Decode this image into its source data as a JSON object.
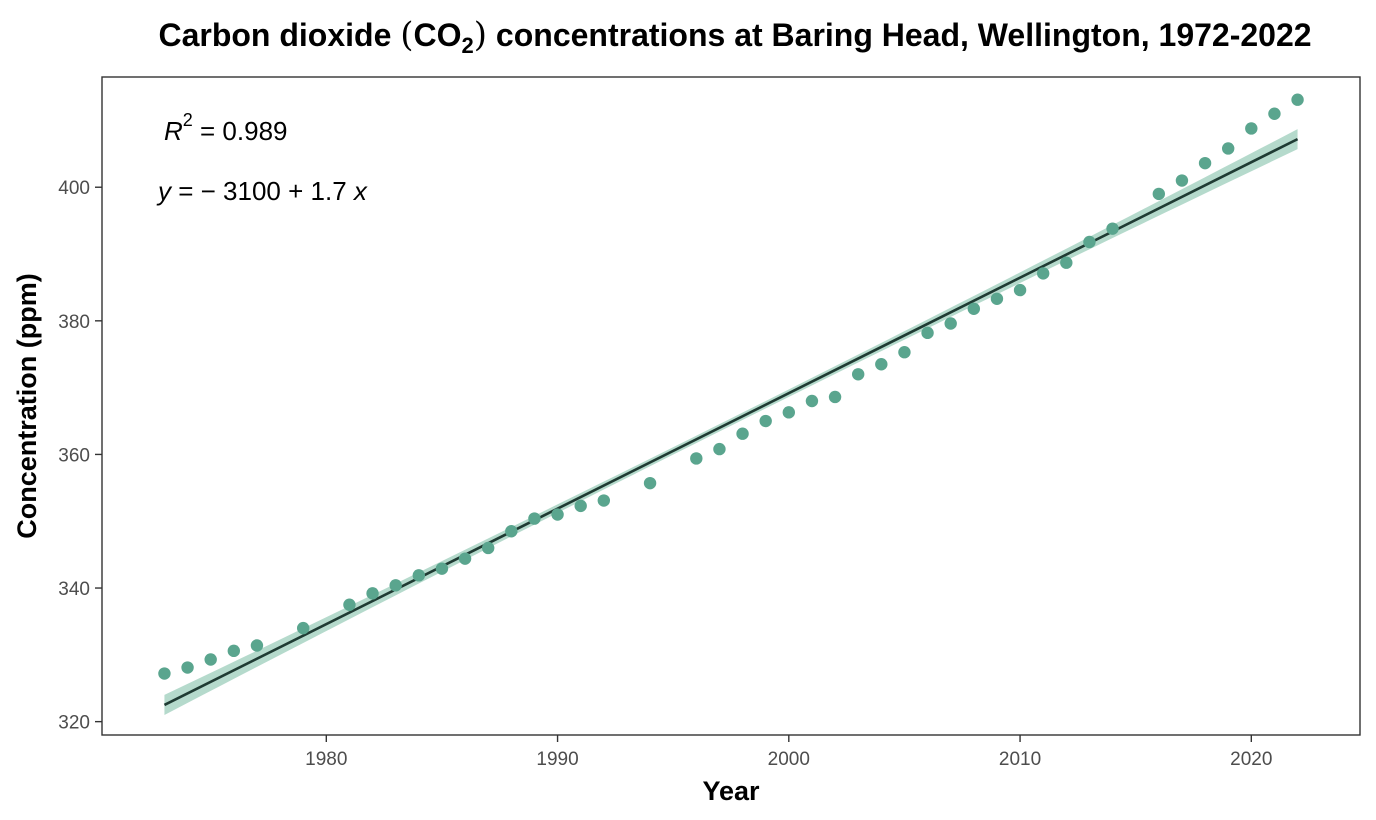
{
  "chart_data": {
    "type": "scatter",
    "title_parts": {
      "before": "Carbon dioxide ",
      "open_paren": "(",
      "chem_main": "CO",
      "chem_sub": "2",
      "close_paren": ")",
      "after": " concentrations at Baring Head, Wellington, 1972-2022"
    },
    "xlabel": "Year",
    "ylabel": "Concentration (ppm)",
    "xlim": [
      1970.3,
      2024.7
    ],
    "ylim": [
      318.0,
      416.5
    ],
    "x_ticks": [
      1980,
      1990,
      2000,
      2010,
      2020
    ],
    "y_ticks": [
      320,
      340,
      360,
      380,
      400
    ],
    "grid": false,
    "legend": "none",
    "colors": {
      "points": "#5aa58e",
      "line": "#1f3b33",
      "band": "#a8d3c3"
    },
    "points": [
      [
        1973,
        327.2
      ],
      [
        1974,
        328.1
      ],
      [
        1975,
        329.3
      ],
      [
        1976,
        330.6
      ],
      [
        1977,
        331.4
      ],
      [
        1979,
        334.0
      ],
      [
        1981,
        337.5
      ],
      [
        1982,
        339.2
      ],
      [
        1983,
        340.4
      ],
      [
        1984,
        341.9
      ],
      [
        1985,
        342.9
      ],
      [
        1986,
        344.4
      ],
      [
        1987,
        346.0
      ],
      [
        1988,
        348.5
      ],
      [
        1989,
        350.4
      ],
      [
        1990,
        351.0
      ],
      [
        1991,
        352.3
      ],
      [
        1992,
        353.1
      ],
      [
        1994,
        355.7
      ],
      [
        1996,
        359.4
      ],
      [
        1997,
        360.8
      ],
      [
        1998,
        363.1
      ],
      [
        1999,
        365.0
      ],
      [
        2000,
        366.3
      ],
      [
        2001,
        368.0
      ],
      [
        2002,
        368.6
      ],
      [
        2003,
        372.0
      ],
      [
        2004,
        373.5
      ],
      [
        2005,
        375.3
      ],
      [
        2006,
        378.2
      ],
      [
        2007,
        379.6
      ],
      [
        2008,
        381.8
      ],
      [
        2009,
        383.3
      ],
      [
        2010,
        384.6
      ],
      [
        2011,
        387.1
      ],
      [
        2012,
        388.7
      ],
      [
        2013,
        391.8
      ],
      [
        2014,
        393.8
      ],
      [
        2016,
        399.0
      ],
      [
        2017,
        401.0
      ],
      [
        2018,
        403.6
      ],
      [
        2019,
        405.8
      ],
      [
        2020,
        408.8
      ],
      [
        2021,
        411.0
      ],
      [
        2022,
        413.1
      ]
    ],
    "fit": {
      "x_range": [
        1973,
        2022
      ],
      "y_start": 322.5,
      "y_end": 407.2,
      "band_halfwidth_ends": 1.5,
      "band_halfwidth_mid": 0.55
    },
    "annotations": {
      "r2": {
        "symbol": "R",
        "sup": "2",
        "text": " = 0.989"
      },
      "equation": {
        "y_sym": "y",
        "eq_text": " = − 3100 + 1.7 ",
        "x_sym": "x"
      }
    }
  }
}
